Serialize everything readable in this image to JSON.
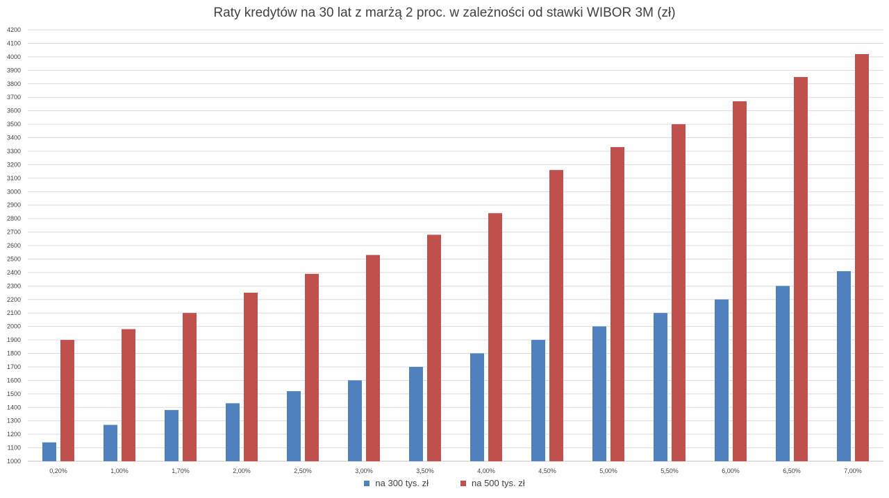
{
  "chart_data": {
    "type": "bar",
    "title": "Raty kredytów na 30 lat z marżą 2 proc. w zależności od stawki WIBOR 3M (zł)",
    "xlabel": "",
    "ylabel": "",
    "categories": [
      "0,20%",
      "1,00%",
      "1,70%",
      "2,00%",
      "2,50%",
      "3,00%",
      "3,50%",
      "4,00%",
      "4,50%",
      "5,00%",
      "5,50%",
      "6,00%",
      "6,50%",
      "7,00%"
    ],
    "series": [
      {
        "name": "na 300 tys. zł",
        "color": "#4f81bd",
        "values": [
          1140,
          1270,
          1380,
          1430,
          1520,
          1600,
          1700,
          1800,
          1900,
          2000,
          2100,
          2200,
          2300,
          2410
        ]
      },
      {
        "name": "na 500 tys. zł",
        "color": "#c0504d",
        "values": [
          1900,
          1980,
          2100,
          2250,
          2390,
          2530,
          2680,
          2840,
          3160,
          3330,
          3500,
          3670,
          3850,
          4020
        ]
      }
    ],
    "ylim": [
      1000,
      4200
    ],
    "ytick_step": 100,
    "grid": true,
    "legend_position": "bottom"
  }
}
